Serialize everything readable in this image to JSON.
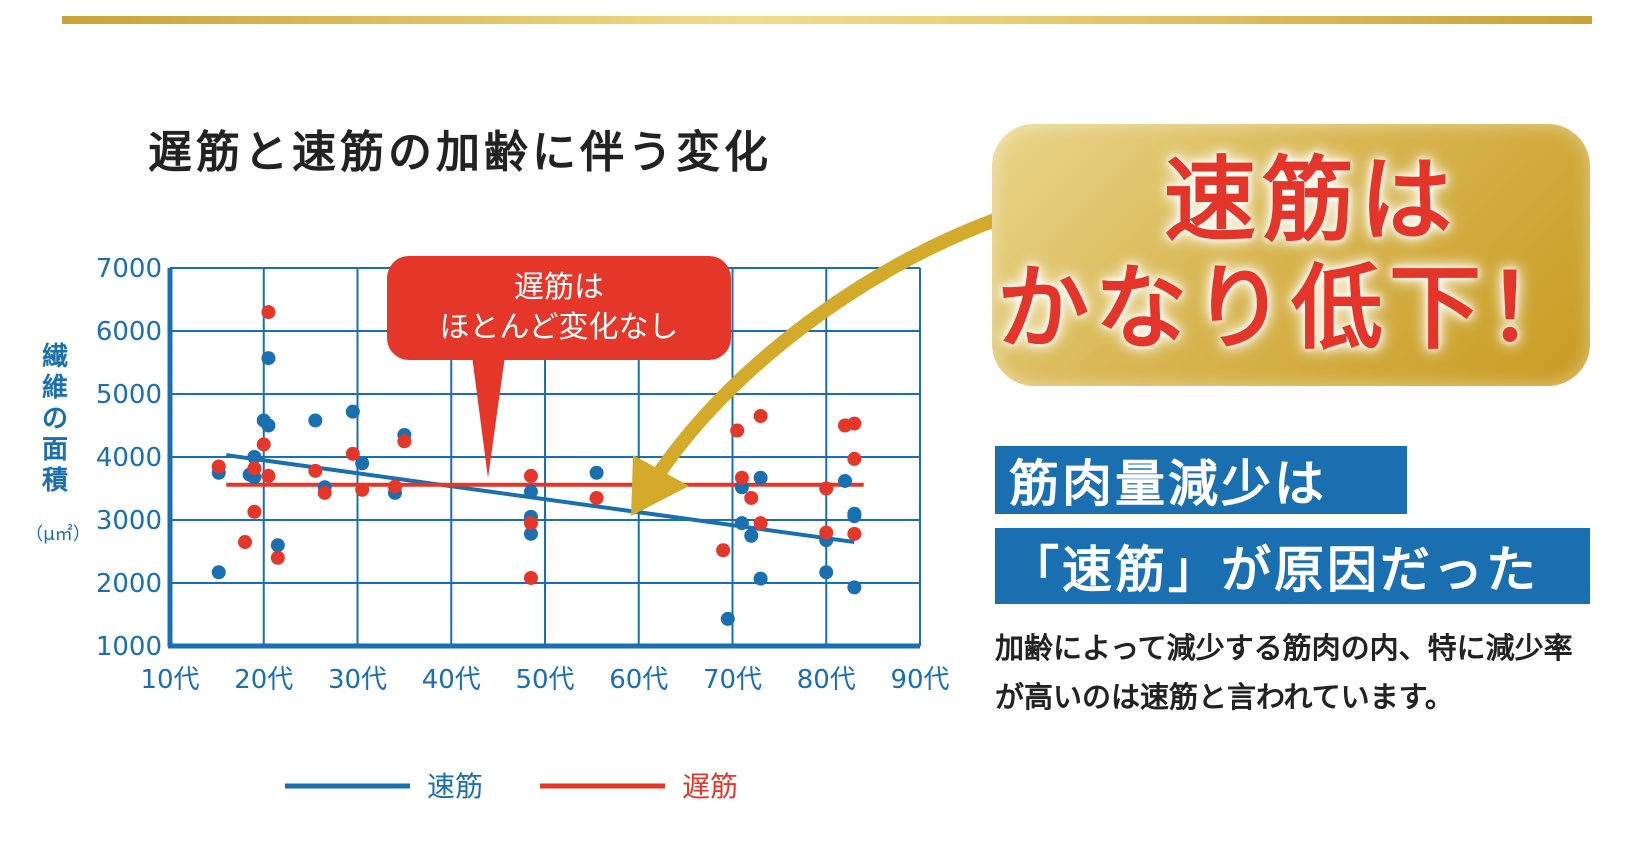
{
  "title": "遅筋と速筋の加齢に伴う変化",
  "callout_red": {
    "line1": "遅筋は",
    "line2": "ほとんど変化なし"
  },
  "gold_box": {
    "line1": "速筋は",
    "line2": "かなり低下！"
  },
  "banner": {
    "line1": "筋肉量減少は",
    "line2": "「速筋」が原因だった"
  },
  "body_text": "加齢によって減少する筋肉の内、特に減少率が高いのは速筋と言われています。",
  "chart_data": {
    "type": "scatter",
    "ylabel": "繊維の面積",
    "yunit": "（μ㎡）",
    "ylim": [
      1000,
      7000
    ],
    "yticks": [
      "1000",
      "2000",
      "3000",
      "4000",
      "5000",
      "6000",
      "7000"
    ],
    "xlim": [
      10,
      90
    ],
    "xticks": [
      "10代",
      "20代",
      "30代",
      "40代",
      "50代",
      "60代",
      "70代",
      "80代",
      "90代"
    ],
    "grid": true,
    "legend_position": "bottom",
    "colors": {
      "fast": "#1a6fb0",
      "slow": "#e5362a",
      "grid": "#1a6fb0",
      "gold": "#d4aa2a"
    },
    "series": [
      {
        "name": "速筋",
        "color": "#1a6fb0",
        "points": [
          [
            15.2,
            3750
          ],
          [
            15.2,
            2170
          ],
          [
            18.5,
            3720
          ],
          [
            19.0,
            3680
          ],
          [
            19.0,
            4000
          ],
          [
            20.0,
            4580
          ],
          [
            20.5,
            4500
          ],
          [
            20.5,
            5570
          ],
          [
            21.5,
            2600
          ],
          [
            25.5,
            4580
          ],
          [
            26.5,
            3520
          ],
          [
            29.5,
            4720
          ],
          [
            30.5,
            3900
          ],
          [
            34.0,
            3430
          ],
          [
            35.0,
            4350
          ],
          [
            48.5,
            3450
          ],
          [
            48.5,
            3050
          ],
          [
            48.5,
            2780
          ],
          [
            55.5,
            3750
          ],
          [
            69.5,
            1430
          ],
          [
            71.0,
            3520
          ],
          [
            71.0,
            2950
          ],
          [
            72.0,
            2750
          ],
          [
            73.0,
            3670
          ],
          [
            73.0,
            2070
          ],
          [
            80.0,
            2680
          ],
          [
            80.0,
            2170
          ],
          [
            82.0,
            3620
          ],
          [
            83.0,
            3100
          ],
          [
            83.0,
            3060
          ],
          [
            83.0,
            1930
          ]
        ],
        "trend": [
          [
            16,
            4030
          ],
          [
            83,
            2650
          ]
        ]
      },
      {
        "name": "遅筋",
        "color": "#e5362a",
        "points": [
          [
            15.2,
            3850
          ],
          [
            18.0,
            2650
          ],
          [
            19.0,
            3130
          ],
          [
            19.0,
            3820
          ],
          [
            20.0,
            4200
          ],
          [
            20.5,
            6300
          ],
          [
            20.5,
            3700
          ],
          [
            21.5,
            2400
          ],
          [
            25.5,
            3780
          ],
          [
            26.5,
            3430
          ],
          [
            29.5,
            4050
          ],
          [
            30.5,
            3480
          ],
          [
            34.0,
            3530
          ],
          [
            35.0,
            4250
          ],
          [
            48.5,
            3700
          ],
          [
            48.5,
            2950
          ],
          [
            48.5,
            2080
          ],
          [
            55.5,
            3350
          ],
          [
            69.0,
            2520
          ],
          [
            70.5,
            4420
          ],
          [
            71.0,
            3670
          ],
          [
            72.0,
            3350
          ],
          [
            73.0,
            4650
          ],
          [
            73.0,
            2950
          ],
          [
            80.0,
            2800
          ],
          [
            80.0,
            3500
          ],
          [
            82.0,
            4500
          ],
          [
            83.0,
            4530
          ],
          [
            83.0,
            3970
          ],
          [
            83.0,
            2780
          ]
        ],
        "trend": [
          [
            16,
            3560
          ],
          [
            84,
            3560
          ]
        ]
      }
    ],
    "annotation": {
      "text": "遅筋は\nほとんど変化なし",
      "color": "#e5362a"
    }
  }
}
